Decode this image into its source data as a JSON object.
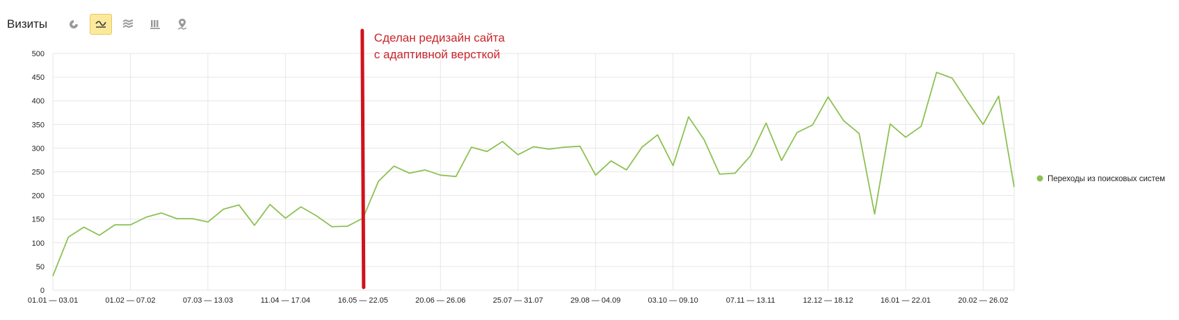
{
  "header": {
    "title": "Визиты",
    "tools": [
      {
        "name": "pie-chart",
        "active": false
      },
      {
        "name": "line-chart",
        "active": true
      },
      {
        "name": "area-chart",
        "active": false
      },
      {
        "name": "bar-chart",
        "active": false
      },
      {
        "name": "map",
        "active": false
      }
    ]
  },
  "colors": {
    "line": "#8cc152",
    "grid": "#e6e6e6",
    "annotation": "#d0121c",
    "tool_active_bg": "#fde99b"
  },
  "annotation": {
    "line1": "Сделан редизайн сайта",
    "line2": "с адаптивной версткой",
    "x_index": 20
  },
  "chart_data": {
    "type": "line",
    "title": "",
    "xlabel": "",
    "ylabel": "",
    "ylim": [
      0,
      500
    ],
    "yticks": [
      0,
      50,
      100,
      150,
      200,
      250,
      300,
      350,
      400,
      450,
      500
    ],
    "grid": true,
    "legend_position": "right",
    "xtick_labels": [
      {
        "index": 0,
        "label": "01.01 — 03.01"
      },
      {
        "index": 5,
        "label": "01.02 — 07.02"
      },
      {
        "index": 10,
        "label": "07.03 — 13.03"
      },
      {
        "index": 15,
        "label": "11.04 — 17.04"
      },
      {
        "index": 20,
        "label": "16.05 — 22.05"
      },
      {
        "index": 25,
        "label": "20.06 — 26.06"
      },
      {
        "index": 30,
        "label": "25.07 — 31.07"
      },
      {
        "index": 35,
        "label": "29.08 — 04.09"
      },
      {
        "index": 40,
        "label": "03.10 — 09.10"
      },
      {
        "index": 45,
        "label": "07.11 — 13.11"
      },
      {
        "index": 50,
        "label": "12.12 — 18.12"
      },
      {
        "index": 55,
        "label": "16.01 — 22.01"
      },
      {
        "index": 60,
        "label": "20.02 — 26.02"
      }
    ],
    "series": [
      {
        "name": "Переходы из поисковых систем",
        "values": [
          30,
          112,
          133,
          116,
          138,
          138,
          154,
          163,
          151,
          151,
          144,
          171,
          180,
          137,
          181,
          152,
          176,
          157,
          134,
          135,
          152,
          230,
          262,
          247,
          254,
          243,
          240,
          302,
          293,
          314,
          286,
          303,
          298,
          302,
          304,
          243,
          273,
          254,
          302,
          328,
          263,
          366,
          318,
          245,
          247,
          284,
          353,
          274,
          333,
          349,
          408,
          358,
          331,
          161,
          351,
          323,
          346,
          460,
          448,
          398,
          350,
          410,
          218
        ]
      }
    ]
  }
}
